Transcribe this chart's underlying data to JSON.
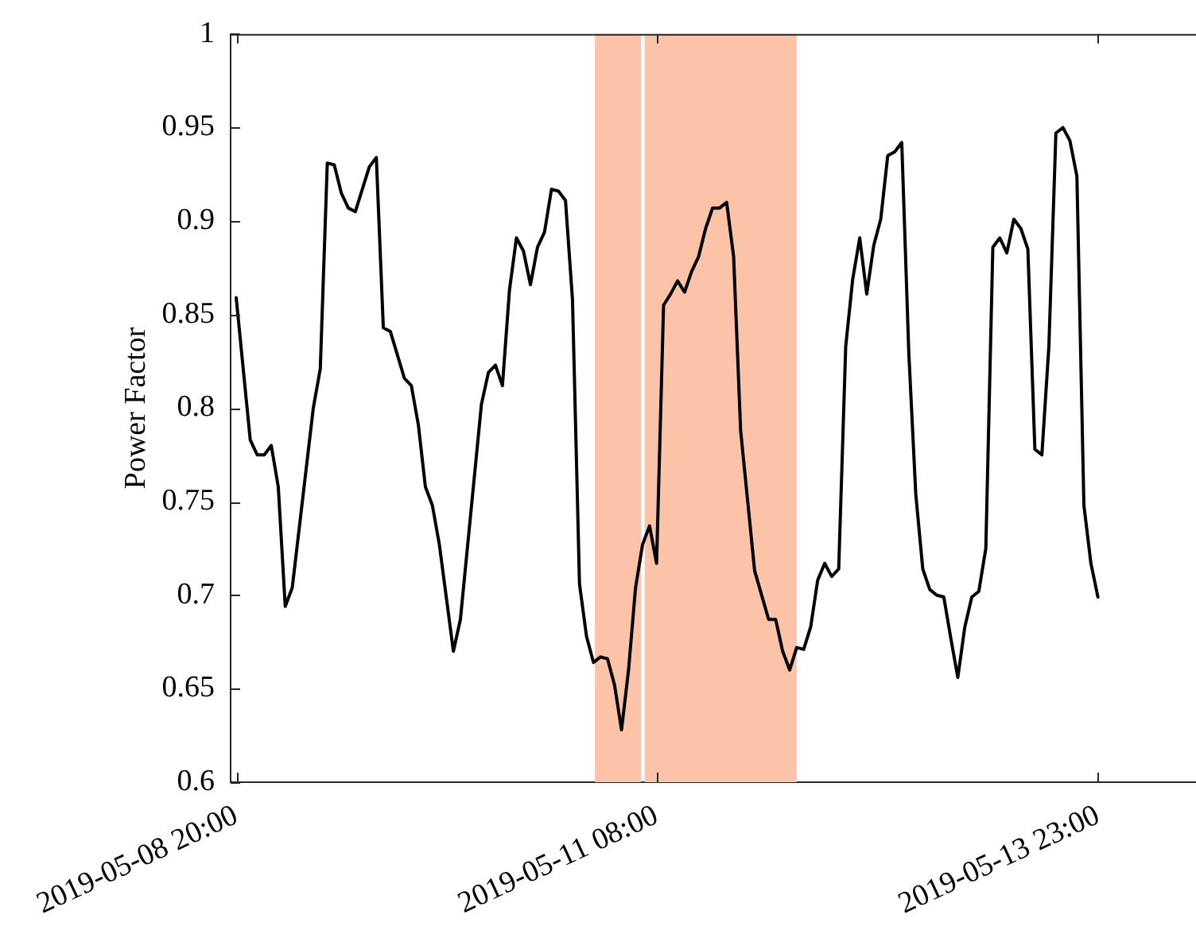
{
  "chart_data": {
    "type": "line",
    "ylabel": "Power Factor",
    "x": [
      "2019-05-08T20:00",
      "2019-05-08T22:00",
      "2019-05-08T23:00",
      "2019-05-09T00:00",
      "2019-05-09T01:00",
      "2019-05-09T02:00",
      "2019-05-09T03:00",
      "2019-05-09T04:00",
      "2019-05-09T07:00",
      "2019-05-09T08:00",
      "2019-05-09T09:00",
      "2019-05-09T10:00",
      "2019-05-09T11:00",
      "2019-05-09T12:00",
      "2019-05-09T13:00",
      "2019-05-09T15:00",
      "2019-05-09T16:00",
      "2019-05-09T17:00",
      "2019-05-09T18:00",
      "2019-05-09T20:00",
      "2019-05-09T21:00",
      "2019-05-09T22:00",
      "2019-05-09T23:00",
      "2019-05-10T00:00",
      "2019-05-10T01:00",
      "2019-05-10T03:00",
      "2019-05-10T04:00",
      "2019-05-10T07:00",
      "2019-05-10T08:00",
      "2019-05-10T09:00",
      "2019-05-10T10:00",
      "2019-05-10T11:00",
      "2019-05-10T12:00",
      "2019-05-10T13:00",
      "2019-05-10T14:00",
      "2019-05-10T15:00",
      "2019-05-10T16:00",
      "2019-05-10T17:00",
      "2019-05-10T18:00",
      "2019-05-10T19:00",
      "2019-05-10T20:00",
      "2019-05-10T21:00",
      "2019-05-10T22:00",
      "2019-05-10T23:00",
      "2019-05-11T00:00",
      "2019-05-11T01:00",
      "2019-05-11T02:00",
      "2019-05-11T03:00",
      "2019-05-11T04:00",
      "2019-05-11T05:00",
      "2019-05-11T06:00",
      "2019-05-11T07:00",
      "2019-05-11T08:00",
      "2019-05-11T09:00",
      "2019-05-11T10:00",
      "2019-05-11T11:00",
      "2019-05-11T12:00",
      "2019-05-11T13:00",
      "2019-05-11T14:00",
      "2019-05-11T15:00",
      "2019-05-11T16:00",
      "2019-05-11T17:00",
      "2019-05-11T18:00",
      "2019-05-11T19:00",
      "2019-05-11T20:00",
      "2019-05-11T22:00",
      "2019-05-12T00:00",
      "2019-05-12T01:00",
      "2019-05-12T02:00",
      "2019-05-12T03:00",
      "2019-05-12T04:00",
      "2019-05-12T05:00",
      "2019-05-12T06:00",
      "2019-05-12T07:00",
      "2019-05-12T08:00",
      "2019-05-12T09:00",
      "2019-05-12T10:00",
      "2019-05-12T11:00",
      "2019-05-12T12:00",
      "2019-05-12T13:00",
      "2019-05-12T14:00",
      "2019-05-12T15:00",
      "2019-05-12T16:00",
      "2019-05-12T17:00",
      "2019-05-12T18:00",
      "2019-05-12T19:00",
      "2019-05-12T20:00",
      "2019-05-12T21:00",
      "2019-05-12T22:00",
      "2019-05-12T23:00",
      "2019-05-13T00:00",
      "2019-05-13T01:00",
      "2019-05-13T02:00",
      "2019-05-13T03:00",
      "2019-05-13T04:00",
      "2019-05-13T05:00",
      "2019-05-13T06:00",
      "2019-05-13T07:00",
      "2019-05-13T08:00",
      "2019-05-13T09:00",
      "2019-05-13T10:00",
      "2019-05-13T11:00",
      "2019-05-13T12:00",
      "2019-05-13T13:00",
      "2019-05-13T14:00",
      "2019-05-13T15:00",
      "2019-05-13T16:00",
      "2019-05-13T17:00",
      "2019-05-13T18:00",
      "2019-05-13T19:00",
      "2019-05-13T20:00",
      "2019-05-13T21:00",
      "2019-05-13T22:00",
      "2019-05-13T23:00"
    ],
    "series": [
      {
        "color": "#000000",
        "values": [
          0.859,
          0.783,
          0.775,
          0.775,
          0.78,
          0.758,
          0.694,
          0.704,
          0.8,
          0.821,
          0.931,
          0.93,
          0.915,
          0.907,
          0.905,
          0.929,
          0.934,
          0.843,
          0.841,
          0.816,
          0.812,
          0.791,
          0.758,
          0.748,
          0.727,
          0.67,
          0.687,
          0.802,
          0.819,
          0.823,
          0.812,
          0.863,
          0.891,
          0.884,
          0.866,
          0.886,
          0.894,
          0.917,
          0.916,
          0.911,
          0.858,
          0.706,
          0.678,
          0.664,
          0.667,
          0.666,
          0.652,
          0.628,
          0.66,
          0.704,
          0.727,
          0.737,
          0.717,
          0.855,
          0.861,
          0.868,
          0.862,
          0.873,
          0.881,
          0.896,
          0.907,
          0.907,
          0.91,
          0.881,
          0.788,
          0.713,
          0.687,
          0.687,
          0.67,
          0.66,
          0.672,
          0.671,
          0.683,
          0.708,
          0.717,
          0.71,
          0.714,
          0.833,
          0.869,
          0.891,
          0.861,
          0.887,
          0.901,
          0.935,
          0.937,
          0.942,
          0.83,
          0.754,
          0.714,
          0.703,
          0.7,
          0.699,
          0.677,
          0.656,
          0.683,
          0.699,
          0.702,
          0.725,
          0.886,
          0.891,
          0.883,
          0.901,
          0.896,
          0.885,
          0.778,
          0.775,
          0.833,
          0.947,
          0.95,
          0.943,
          0.924,
          0.748,
          0.717,
          0.699
        ]
      }
    ],
    "xlim": [
      "2019-05-08T19:12",
      "2019-05-14T13:00"
    ],
    "xticks": [
      {
        "value": "2019-05-08T20:00",
        "label": "2019-05-08 20:00"
      },
      {
        "value": "2019-05-11T08:00",
        "label": "2019-05-11 08:00"
      },
      {
        "value": "2019-05-13T23:00",
        "label": "2019-05-13 23:00"
      }
    ],
    "ylim": [
      0.6,
      1
    ],
    "yticks": [
      0.6,
      0.65,
      0.7,
      0.75,
      0.8,
      0.85,
      0.9,
      0.95,
      1
    ],
    "bands": [
      {
        "axis": "x",
        "from": "2019-05-10T23:12",
        "to": "2019-05-11T05:48",
        "color": "#fcc3a8"
      },
      {
        "axis": "x",
        "from": "2019-05-11T06:18",
        "to": "2019-05-12T04:00",
        "color": "#fcc3a8"
      }
    ],
    "marker": "none",
    "line_style": "solid",
    "legend": false
  }
}
